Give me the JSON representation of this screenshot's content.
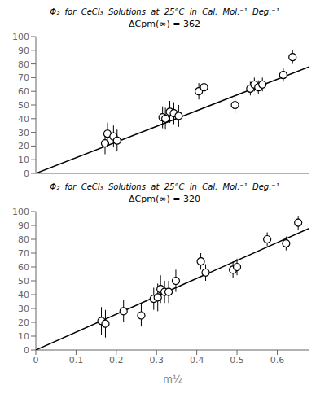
{
  "chart_data": [
    {
      "type": "scatter",
      "title": "Φ₂  for  CeCl₃  Solutions  at  25°C  in  Cal.  Mol.⁻¹  Deg.⁻¹",
      "subtitle": "ΔCpm(∞) = 362",
      "series": [
        {
          "type": "line",
          "x": [
            0.0,
            0.68
          ],
          "values": [
            0.0,
            78.0
          ],
          "color": "#000000",
          "line_style": "solid"
        },
        {
          "type": "scatter",
          "x": [
            0.172,
            0.178,
            0.193,
            0.202,
            0.315,
            0.322,
            0.333,
            0.343,
            0.355,
            0.405,
            0.418,
            0.495,
            0.533,
            0.543,
            0.553,
            0.563,
            0.615,
            0.638
          ],
          "values": [
            22,
            29,
            27,
            24,
            41,
            40,
            45,
            44,
            42,
            60,
            63,
            50,
            62,
            65,
            63,
            65,
            72,
            85
          ],
          "yerr": [
            8,
            8,
            8,
            8,
            8,
            8,
            8,
            8,
            8,
            6,
            6,
            6,
            5,
            5,
            5,
            5,
            5,
            5
          ],
          "color": "#000000",
          "marker": "circle"
        }
      ],
      "xlim": [
        0.0,
        0.68
      ],
      "ylim": [
        0,
        100
      ],
      "xticks": [
        0.0,
        0.1,
        0.2,
        0.3,
        0.4,
        0.5,
        0.6
      ],
      "yticks": [
        0,
        10,
        20,
        30,
        40,
        50,
        60,
        70,
        80,
        90,
        100
      ],
      "grid": false,
      "tick_labels": "y"
    },
    {
      "type": "scatter",
      "title": "Φ₂  for  CeCl₃  Solutions  at  25°C  in  Cal.  Mol.⁻¹  Deg.⁻¹",
      "subtitle": "ΔCpm(∞) = 320",
      "xlabel": "m½",
      "series": [
        {
          "type": "line",
          "x": [
            0.0,
            0.68
          ],
          "values": [
            0.0,
            88.0
          ],
          "color": "#000000",
          "line_style": "solid"
        },
        {
          "type": "scatter",
          "x": [
            0.163,
            0.173,
            0.218,
            0.262,
            0.293,
            0.303,
            0.31,
            0.32,
            0.33,
            0.348,
            0.41,
            0.422,
            0.49,
            0.5,
            0.575,
            0.622,
            0.652
          ],
          "values": [
            21,
            19,
            28,
            25,
            37,
            38,
            44,
            42,
            42,
            50,
            64,
            56,
            58,
            60,
            80,
            77,
            92
          ],
          "yerr": [
            10,
            10,
            8,
            8,
            8,
            10,
            10,
            8,
            8,
            8,
            6,
            6,
            6,
            6,
            5,
            5,
            5
          ],
          "color": "#000000",
          "marker": "circle"
        }
      ],
      "xlim": [
        0.0,
        0.68
      ],
      "ylim": [
        0,
        100
      ],
      "xticks": [
        0.0,
        0.1,
        0.2,
        0.3,
        0.4,
        0.5,
        0.6
      ],
      "yticks": [
        0,
        10,
        20,
        30,
        40,
        50,
        60,
        70,
        80,
        90,
        100
      ],
      "grid": false,
      "tick_labels": true
    }
  ]
}
